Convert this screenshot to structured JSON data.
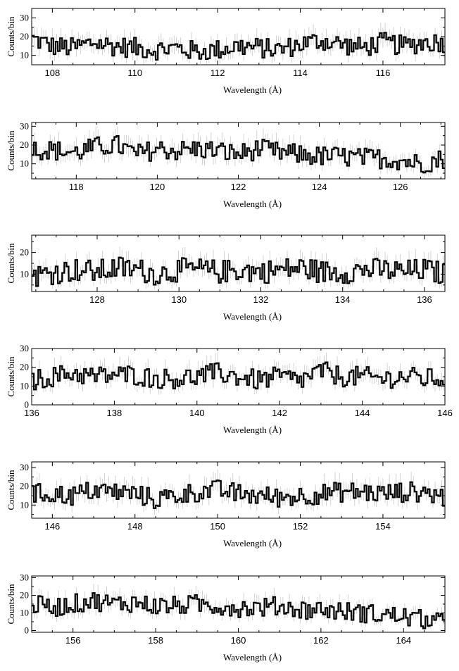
{
  "chart_data": [
    {
      "type": "line",
      "style": "step-with-errorbars",
      "xlabel": "Wavelength (Å)",
      "ylabel": "Counts/bin",
      "xlim": [
        107.5,
        117.5
      ],
      "ylim": [
        5,
        35
      ],
      "xticks": [
        108,
        110,
        112,
        114,
        116
      ],
      "yticks": [
        10,
        20,
        30
      ],
      "x": [
        107.5,
        108.0,
        108.5,
        109.0,
        109.5,
        110.0,
        110.5,
        111.0,
        111.5,
        112.0,
        112.5,
        113.0,
        113.5,
        114.0,
        114.5,
        115.0,
        115.5,
        116.0,
        116.5,
        117.0,
        117.5
      ],
      "y": [
        19,
        15,
        14,
        17,
        15,
        14,
        13,
        14,
        12,
        13,
        15,
        14,
        13,
        16,
        18,
        16,
        14,
        17,
        15,
        17,
        17
      ]
    },
    {
      "type": "line",
      "style": "step-with-errorbars",
      "xlabel": "Wavelength (Å)",
      "ylabel": "Counts/bin",
      "xlim": [
        116.9,
        127.1
      ],
      "ylim": [
        2,
        32
      ],
      "xticks": [
        118,
        120,
        122,
        124,
        126
      ],
      "yticks": [
        10,
        20,
        30
      ],
      "x": [
        116.9,
        117.5,
        118.0,
        118.5,
        119.0,
        119.5,
        120.0,
        120.5,
        121.0,
        121.5,
        122.0,
        122.5,
        123.0,
        123.5,
        124.0,
        124.5,
        125.0,
        125.5,
        126.0,
        126.5,
        127.1
      ],
      "y": [
        18,
        17,
        16,
        19,
        20,
        15,
        18,
        17,
        18,
        17,
        15,
        18,
        16,
        15,
        14,
        14,
        13,
        13,
        12,
        10,
        13
      ]
    },
    {
      "type": "line",
      "style": "step-with-errorbars",
      "xlabel": "Wavelength (Å)",
      "ylabel": "Counts/bin",
      "xlim": [
        126.4,
        136.5
      ],
      "ylim": [
        2,
        28
      ],
      "xticks": [
        128,
        130,
        132,
        134,
        136
      ],
      "yticks": [
        10,
        20
      ],
      "x": [
        126.4,
        127.0,
        127.5,
        128.0,
        128.5,
        129.0,
        129.5,
        130.0,
        130.5,
        131.0,
        131.5,
        132.0,
        132.5,
        133.0,
        133.5,
        134.0,
        134.5,
        135.0,
        135.5,
        136.0,
        136.5
      ],
      "y": [
        9,
        11,
        12,
        11,
        13,
        12,
        10,
        12,
        12,
        11,
        12,
        11,
        12,
        13,
        11,
        11,
        12,
        12,
        11,
        12,
        10
      ]
    },
    {
      "type": "line",
      "style": "step-with-errorbars",
      "xlabel": "Wavelength (Å)",
      "ylabel": "Counts/bin",
      "xlim": [
        136,
        146
      ],
      "ylim": [
        0,
        30
      ],
      "xticks": [
        136,
        138,
        140,
        142,
        144,
        146
      ],
      "yticks": [
        0,
        10,
        20,
        30
      ],
      "x": [
        136.0,
        136.5,
        137.0,
        137.5,
        138.0,
        138.5,
        139.0,
        139.5,
        140.0,
        140.5,
        141.0,
        141.5,
        142.0,
        142.5,
        143.0,
        143.5,
        144.0,
        144.5,
        145.0,
        145.5,
        146.0
      ],
      "y": [
        13,
        15,
        17,
        15,
        16,
        16,
        14,
        14,
        15,
        17,
        15,
        13,
        15,
        13,
        18,
        15,
        15,
        14,
        15,
        14,
        14
      ]
    },
    {
      "type": "line",
      "style": "step-with-errorbars",
      "xlabel": "Wavelength (Å)",
      "ylabel": "Counts/bin",
      "xlim": [
        145.5,
        155.5
      ],
      "ylim": [
        3,
        33
      ],
      "xticks": [
        146,
        148,
        150,
        152,
        154
      ],
      "yticks": [
        10,
        20,
        30
      ],
      "x": [
        145.5,
        146.0,
        146.5,
        147.0,
        147.5,
        148.0,
        148.5,
        149.0,
        149.5,
        150.0,
        150.5,
        151.0,
        151.5,
        152.0,
        152.5,
        153.0,
        153.5,
        154.0,
        154.5,
        155.0,
        155.5
      ],
      "y": [
        16,
        16,
        15,
        18,
        17,
        16,
        13,
        15,
        17,
        18,
        16,
        15,
        14,
        15,
        16,
        17,
        17,
        16,
        17,
        17,
        14
      ]
    },
    {
      "type": "line",
      "style": "step-with-errorbars",
      "xlabel": "Wavelength (Å)",
      "ylabel": "Counts/bin",
      "xlim": [
        155,
        165
      ],
      "ylim": [
        -1,
        31
      ],
      "xticks": [
        156,
        158,
        160,
        162,
        164
      ],
      "yticks": [
        0,
        10,
        20,
        30
      ],
      "x": [
        155.0,
        155.5,
        156.0,
        156.5,
        157.0,
        157.5,
        158.0,
        158.5,
        159.0,
        159.5,
        160.0,
        160.5,
        161.0,
        161.5,
        162.0,
        162.5,
        163.0,
        163.5,
        164.0,
        164.5,
        165.0
      ],
      "y": [
        15,
        13,
        15,
        17,
        15,
        16,
        14,
        14,
        15,
        14,
        13,
        13,
        14,
        12,
        12,
        11,
        10,
        9,
        8,
        6,
        4
      ]
    }
  ]
}
